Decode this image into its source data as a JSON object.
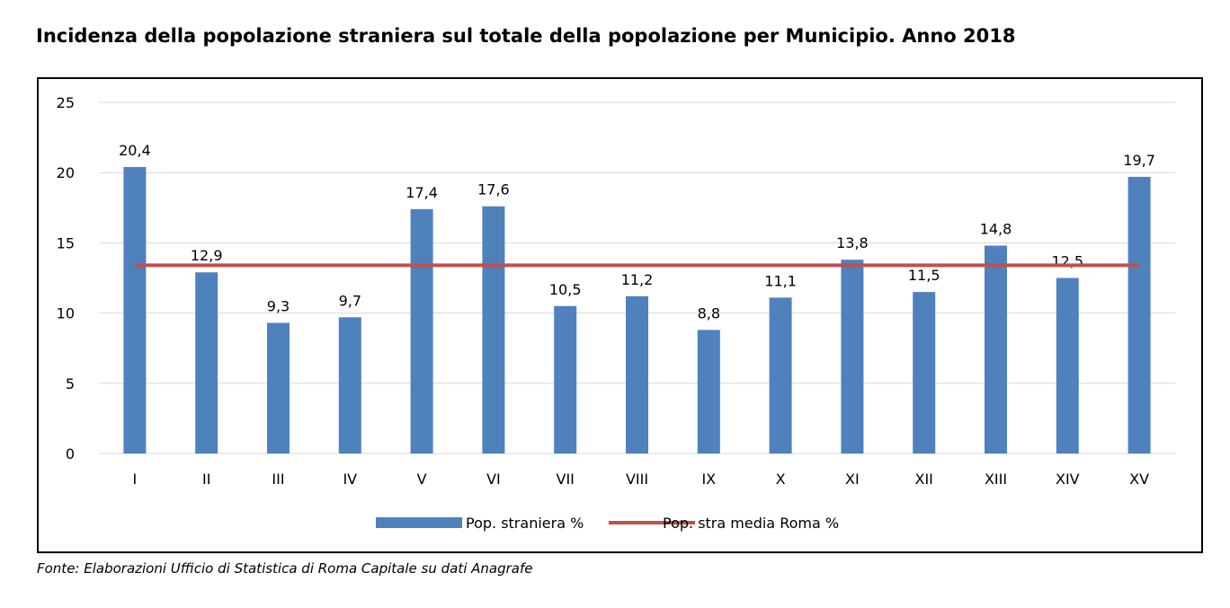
{
  "title": "Incidenza della popolazione straniera sul totale della popolazione per Municipio. Anno 2018",
  "source": "Fonte: Elaborazioni Ufficio di Statistica di Roma Capitale su dati Anagrafe",
  "chart_data": {
    "type": "bar",
    "title": "Incidenza della popolazione straniera sul totale della popolazione per Municipio. Anno 2018",
    "xlabel": "",
    "ylabel": "",
    "categories": [
      "I",
      "II",
      "III",
      "IV",
      "V",
      "VI",
      "VII",
      "VIII",
      "IX",
      "X",
      "XI",
      "XII",
      "XIII",
      "XIV",
      "XV"
    ],
    "ylim": [
      0,
      25
    ],
    "yticks": [
      "0",
      "5",
      "10",
      "15",
      "20",
      "25"
    ],
    "grid": true,
    "legend_position": "bottom",
    "series": [
      {
        "name": "Pop. straniera %",
        "type": "bar",
        "color": "#4f81bd",
        "values": [
          20.4,
          12.9,
          9.3,
          9.7,
          17.4,
          17.6,
          10.5,
          11.2,
          8.8,
          11.1,
          13.8,
          11.5,
          14.8,
          12.5,
          19.7
        ],
        "labels": [
          "20,4",
          "12,9",
          "9,3",
          "9,7",
          "17,4",
          "17,6",
          "10,5",
          "11,2",
          "8,8",
          "11,1",
          "13,8",
          "11,5",
          "14,8",
          "12,5",
          "19,7"
        ]
      },
      {
        "name": "Pop. stra media Roma %",
        "type": "line",
        "color": "#c0504d",
        "values": [
          13.4,
          13.4,
          13.4,
          13.4,
          13.4,
          13.4,
          13.4,
          13.4,
          13.4,
          13.4,
          13.4,
          13.4,
          13.4,
          13.4,
          13.4
        ]
      }
    ]
  }
}
